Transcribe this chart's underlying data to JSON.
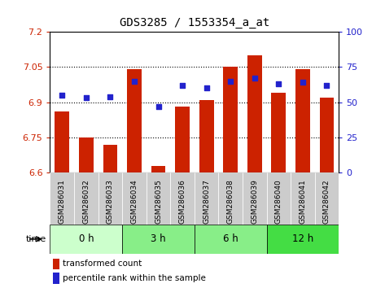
{
  "title": "GDS3285 / 1553354_a_at",
  "samples": [
    "GSM286031",
    "GSM286032",
    "GSM286033",
    "GSM286034",
    "GSM286035",
    "GSM286036",
    "GSM286037",
    "GSM286038",
    "GSM286039",
    "GSM286040",
    "GSM286041",
    "GSM286042"
  ],
  "bar_values": [
    6.86,
    6.75,
    6.72,
    7.04,
    6.63,
    6.88,
    6.91,
    7.05,
    7.1,
    6.94,
    7.04,
    6.92
  ],
  "dot_values": [
    55,
    53,
    54,
    65,
    47,
    62,
    60,
    65,
    67,
    63,
    64,
    62
  ],
  "ylim_left": [
    6.6,
    7.2
  ],
  "ylim_right": [
    0,
    100
  ],
  "yticks_left": [
    6.6,
    6.75,
    6.9,
    7.05,
    7.2
  ],
  "yticks_right": [
    0,
    25,
    50,
    75,
    100
  ],
  "ytick_labels_left": [
    "6.6",
    "6.75",
    "6.9",
    "7.05",
    "7.2"
  ],
  "ytick_labels_right": [
    "0",
    "25",
    "50",
    "75",
    "100"
  ],
  "hlines": [
    6.75,
    6.9,
    7.05
  ],
  "bar_color": "#cc2200",
  "dot_color": "#2222cc",
  "bg_color": "#ffffff",
  "plot_bg": "#ffffff",
  "time_groups": [
    {
      "label": "0 h",
      "start": 0,
      "end": 3,
      "color": "#ccffcc"
    },
    {
      "label": "3 h",
      "start": 3,
      "end": 6,
      "color": "#88ee88"
    },
    {
      "label": "6 h",
      "start": 6,
      "end": 9,
      "color": "#88ee88"
    },
    {
      "label": "12 h",
      "start": 9,
      "end": 12,
      "color": "#44dd44"
    }
  ],
  "ylabel_left_color": "#cc2200",
  "ylabel_right_color": "#2222cc",
  "tick_label_bg": "#cccccc",
  "legend_bar_label": "transformed count",
  "legend_dot_label": "percentile rank within the sample",
  "bar_width": 0.6
}
